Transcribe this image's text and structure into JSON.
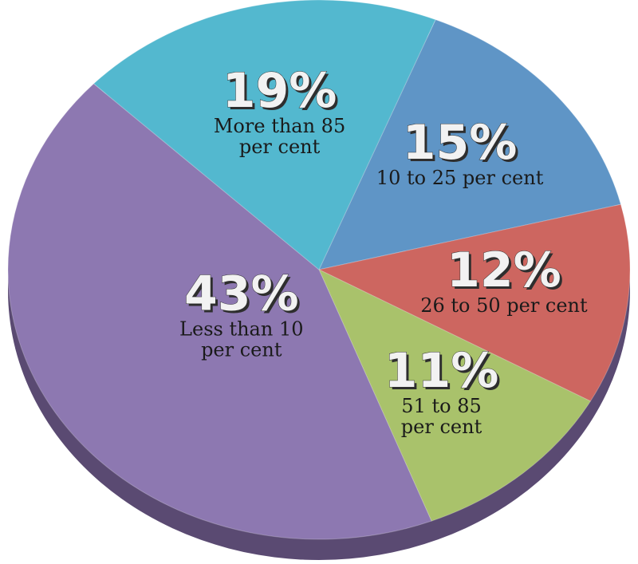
{
  "chart_data": {
    "type": "pie",
    "title": "",
    "slices": [
      {
        "value": 15,
        "display": "15%",
        "label": [
          "10 to 25 per cent"
        ],
        "color": "#5f95c6"
      },
      {
        "value": 12,
        "display": "12%",
        "label": [
          "26 to 50 per cent"
        ],
        "color": "#cd6660"
      },
      {
        "value": 11,
        "display": "11%",
        "label": [
          "51 to 85",
          "per cent"
        ],
        "color": "#a9c26b"
      },
      {
        "value": 43,
        "display": "43%",
        "label": [
          "Less than 10",
          "per cent"
        ],
        "color": "#8d78b1"
      },
      {
        "value": 19,
        "display": "19%",
        "label": [
          "More than 85",
          "per cent"
        ],
        "color": "#53b8cf"
      }
    ],
    "edge_color": "#5a4a72"
  }
}
